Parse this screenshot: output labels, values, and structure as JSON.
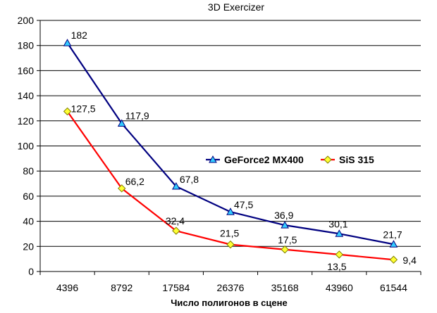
{
  "chart_data": {
    "type": "line",
    "title": "3D Exercizer",
    "xlabel": "Число полигонов в сцене",
    "ylabel": "",
    "categories": [
      "4396",
      "8792",
      "17584",
      "26376",
      "35168",
      "43960",
      "61544"
    ],
    "ylim": [
      0,
      200
    ],
    "yticks": [
      "0",
      "20",
      "40",
      "60",
      "80",
      "100",
      "120",
      "140",
      "160",
      "180",
      "200"
    ],
    "grid": true,
    "legend_position": "right",
    "series": [
      {
        "name": "GeForce2 MX400",
        "values": [
          182,
          117.9,
          67.8,
          47.5,
          36.9,
          30.1,
          21.7
        ],
        "labels": [
          "182",
          "117,9",
          "67,8",
          "47,5",
          "36,9",
          "30,1",
          "21,7"
        ],
        "line_color": "#000080",
        "marker": "triangle",
        "marker_color": "#33ccff"
      },
      {
        "name": "SiS 315",
        "values": [
          127.5,
          66.2,
          32.4,
          21.5,
          17.5,
          13.5,
          9.4
        ],
        "labels": [
          "127,5",
          "66,2",
          "32,4",
          "21,5",
          "17,5",
          "13,5",
          "9,4"
        ],
        "line_color": "#ff0000",
        "marker": "diamond",
        "marker_color": "#ffff33"
      }
    ]
  }
}
